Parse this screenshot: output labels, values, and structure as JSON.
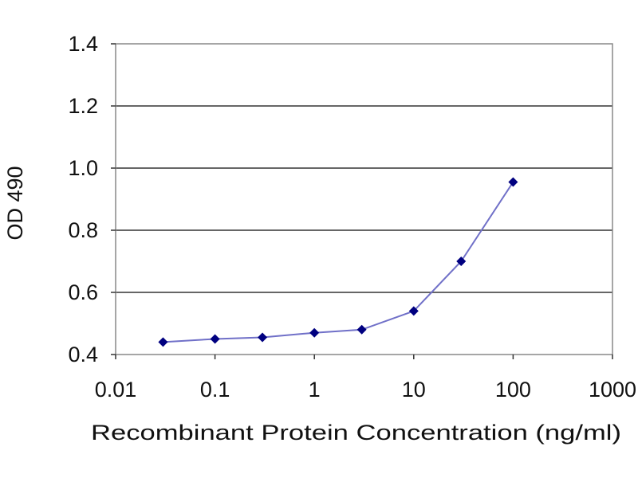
{
  "chart_data": {
    "type": "line",
    "xlabel": "Recombinant Protein Concentration (ng/ml)",
    "ylabel": "OD 490",
    "x_scale": "log",
    "xlim": [
      0.01,
      1000
    ],
    "ylim": [
      0.4,
      1.4
    ],
    "x_ticks": [
      "0.01",
      "0.1",
      "1",
      "10",
      "100",
      "1000"
    ],
    "y_ticks": [
      "0.4",
      "0.6",
      "0.8",
      "1.0",
      "1.2",
      "1.4"
    ],
    "grid": "horizontal",
    "legend": "none",
    "series": [
      {
        "x": [
          0.03,
          0.1,
          0.3,
          1,
          3,
          10,
          30,
          100
        ],
        "y": [
          0.44,
          0.45,
          0.455,
          0.47,
          0.48,
          0.54,
          0.7,
          0.955
        ]
      }
    ],
    "colors": {
      "line": "#7070c8",
      "marker": "#000080",
      "grid": "#666666",
      "frame": "#888888"
    }
  }
}
